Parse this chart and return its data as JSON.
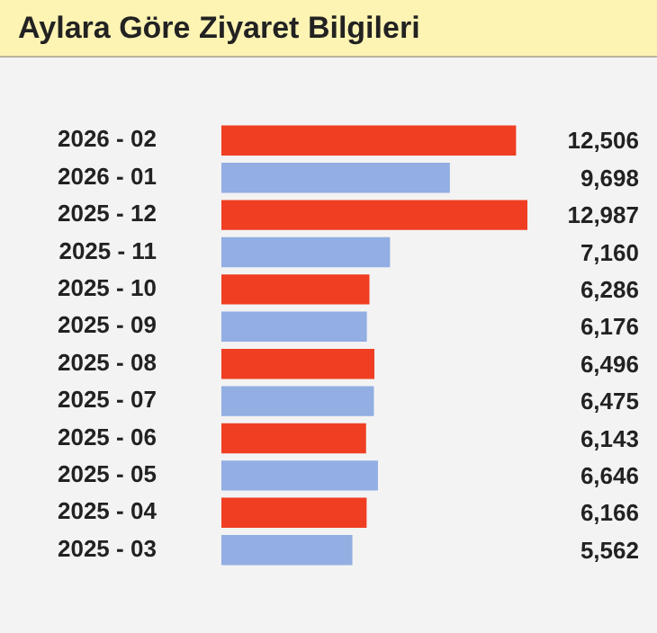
{
  "chart_data": {
    "type": "bar",
    "orientation": "horizontal",
    "title": "Aylara Göre Ziyaret Bilgileri",
    "categories": [
      "2026 - 02",
      "2026 - 01",
      "2025 - 12",
      "2025 - 11",
      "2025 - 10",
      "2025 - 09",
      "2025 - 08",
      "2025 - 07",
      "2025 - 06",
      "2025 - 05",
      "2025 - 04",
      "2025 - 03"
    ],
    "values": [
      12506,
      9698,
      12987,
      7160,
      6286,
      6176,
      6496,
      6475,
      6143,
      6646,
      6166,
      5562
    ],
    "colors": [
      "#f03e23",
      "#92aee2",
      "#f03e23",
      "#92aee2",
      "#f03e23",
      "#92aee2",
      "#f03e23",
      "#92aee2",
      "#f03e23",
      "#92aee2",
      "#f03e23",
      "#92aee2"
    ],
    "value_labels": [
      "12,506",
      "9,698",
      "12,987",
      "7,160",
      "6,286",
      "6,176",
      "6,496",
      "6,475",
      "6,143",
      "6,646",
      "6,166",
      "5,562"
    ],
    "legend": false
  }
}
